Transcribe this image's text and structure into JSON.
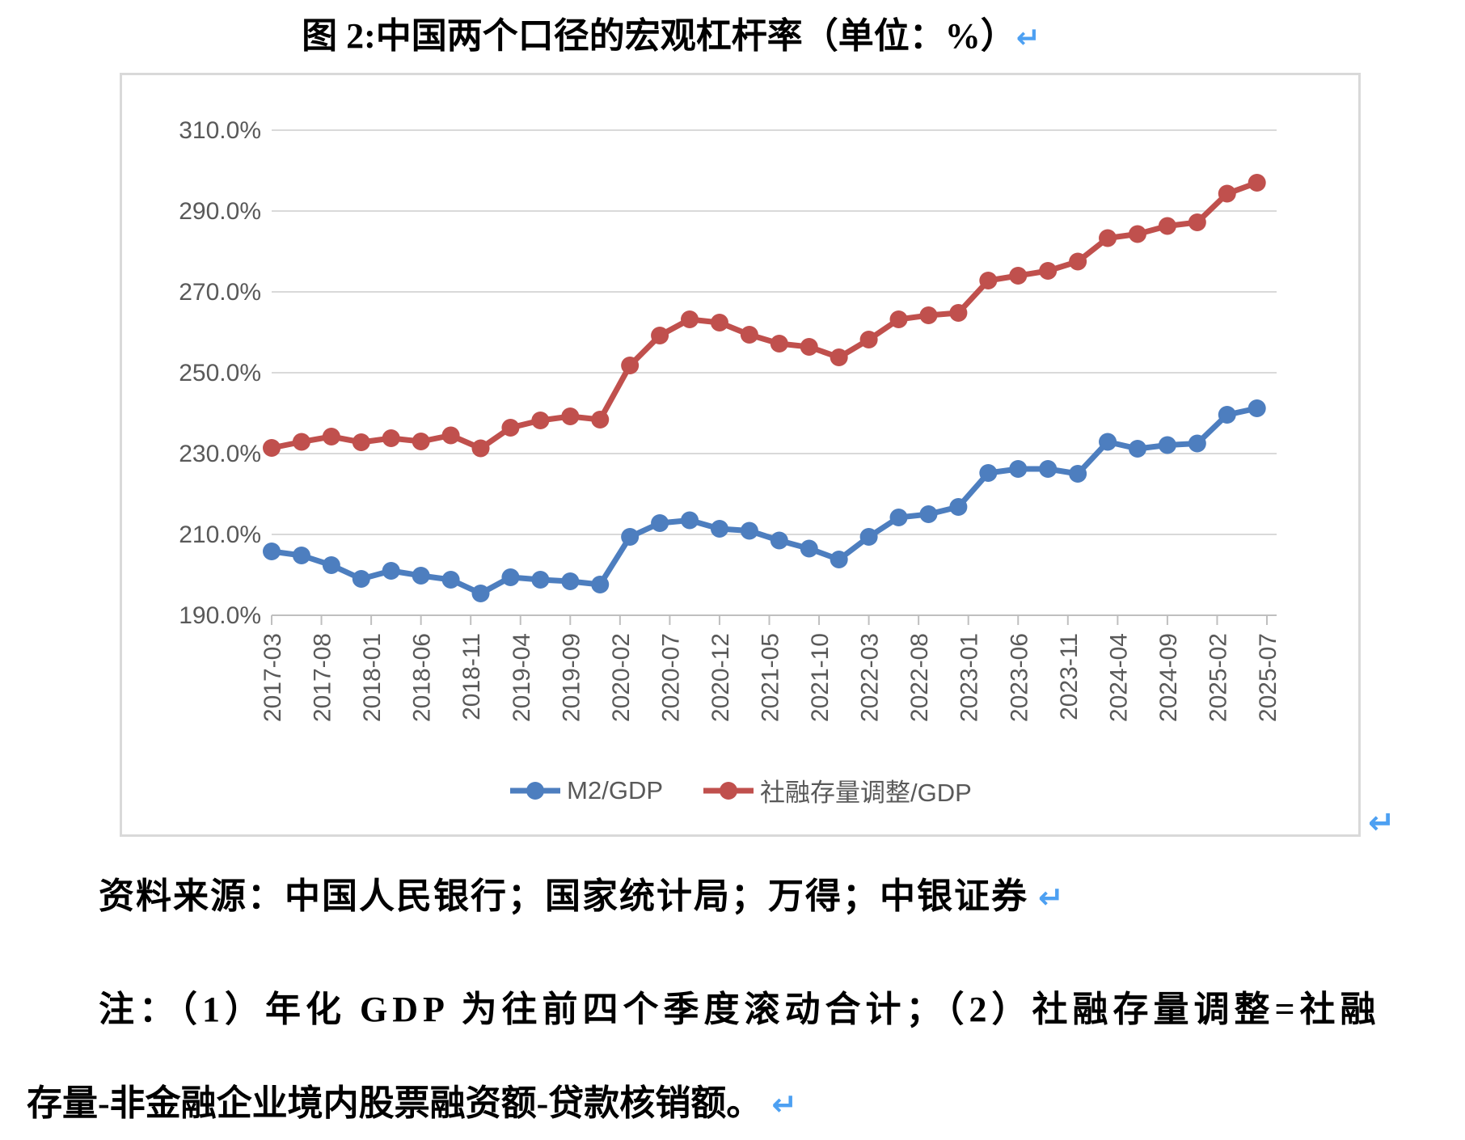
{
  "page": {
    "title": "图 2:中国两个口径的宏观杠杆率（单位：%）",
    "return_mark": "↵",
    "source_line": "资料来源：中国人民银行；国家统计局；万得；中银证券",
    "note_line1": "注：（1）年化 GDP 为往前四个季度滚动合计；（2）社融存量调整=社融",
    "note_line2": "存量-非金融企业境内股票融资额-贷款核销额。"
  },
  "chart_data": {
    "type": "line",
    "title": "图 2:中国两个口径的宏观杠杆率（单位：%）",
    "unit": "%",
    "grid": true,
    "legend_position": "bottom",
    "ylim": [
      190,
      310
    ],
    "y_tick_step": 20,
    "y_tick_labels": [
      "310.0%",
      "290.0%",
      "270.0%",
      "250.0%",
      "230.0%",
      "210.0%",
      "190.0%"
    ],
    "x_tick_labels": [
      "2017-03",
      "2017-08",
      "2018-01",
      "2018-06",
      "2018-11",
      "2019-04",
      "2019-09",
      "2020-02",
      "2020-07",
      "2020-12",
      "2021-05",
      "2021-10",
      "2022-03",
      "2022-08",
      "2023-01",
      "2023-06",
      "2023-11",
      "2024-04",
      "2024-09",
      "2025-02",
      "2025-07"
    ],
    "categories": [
      "2017-03",
      "2017-06",
      "2017-09",
      "2017-12",
      "2018-03",
      "2018-06",
      "2018-09",
      "2018-12",
      "2019-03",
      "2019-06",
      "2019-09",
      "2019-12",
      "2020-03",
      "2020-06",
      "2020-09",
      "2020-12",
      "2021-03",
      "2021-06",
      "2021-09",
      "2021-12",
      "2022-03",
      "2022-06",
      "2022-09",
      "2022-12",
      "2023-03",
      "2023-06",
      "2023-09",
      "2023-12",
      "2024-03",
      "2024-06",
      "2024-09",
      "2024-12",
      "2025-03",
      "2025-06"
    ],
    "series": [
      {
        "name": "M2/GDP",
        "color": "#4d7ebf",
        "values": [
          205.8,
          204.8,
          202.4,
          199.0,
          201.0,
          199.8,
          198.8,
          195.4,
          199.4,
          198.8,
          198.4,
          197.6,
          209.4,
          212.8,
          213.5,
          211.4,
          210.9,
          208.5,
          206.5,
          203.8,
          209.4,
          214.2,
          215.0,
          216.8,
          225.2,
          226.2,
          226.2,
          225.0,
          232.9,
          231.2,
          232.1,
          232.5,
          239.6,
          241.2
        ]
      },
      {
        "name": "社融存量调整/GDP",
        "color": "#c0504d",
        "values": [
          231.4,
          232.9,
          234.2,
          232.8,
          233.8,
          233.0,
          234.5,
          231.3,
          236.4,
          238.2,
          239.2,
          238.4,
          251.8,
          259.2,
          263.2,
          262.4,
          259.4,
          257.2,
          256.4,
          253.8,
          258.2,
          263.2,
          264.2,
          264.8,
          272.8,
          274.0,
          275.2,
          277.5,
          283.3,
          284.3,
          286.3,
          287.2,
          294.3,
          297.0
        ]
      }
    ],
    "colors": {
      "grid_line": "#d9d9d9",
      "axis_line": "#bfbfbf",
      "tick_label": "#595959",
      "return_mark": "#4da0f2"
    }
  }
}
